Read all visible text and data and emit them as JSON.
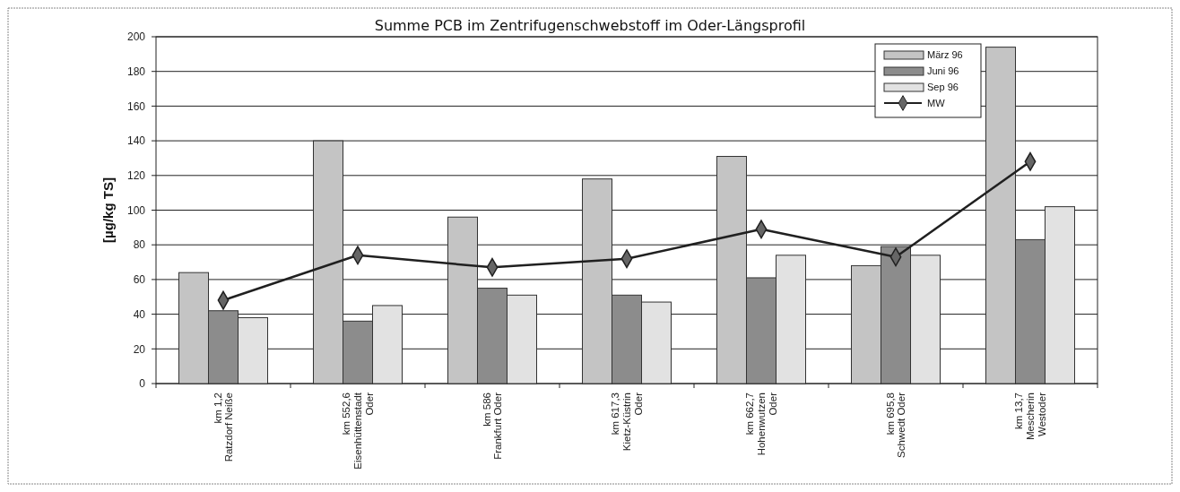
{
  "chart_data": {
    "type": "bar",
    "title": "Summe PCB im Zentrifugenschwebstoff im Oder-Längsprofil",
    "ylabel": "[µg/kg TS]",
    "categories": [
      "km 1,2\nRatzdorf Neiße",
      "km 552,6\nEisenhüttenstadt\nOder",
      "km 586\nFrankfurt Oder",
      "km 617,3\nKietz-Küstrin\nOder",
      "km 662,7\nHohenwutzen\nOder",
      "km 695,8\nSchwedt Oder",
      "km 13,7\nMescherin\nWestoder"
    ],
    "series": [
      {
        "name": "März 96",
        "color": "#c4c4c4",
        "values": [
          64,
          140,
          96,
          118,
          131,
          68,
          194
        ]
      },
      {
        "name": "Juni 96",
        "color": "#8c8c8c",
        "values": [
          42,
          36,
          55,
          51,
          61,
          79,
          83
        ]
      },
      {
        "name": "Sep 96",
        "color": "#e2e2e2",
        "values": [
          38,
          45,
          51,
          47,
          74,
          74,
          102
        ]
      },
      {
        "name": "MW",
        "type": "line",
        "color": "#202020",
        "marker": "diamond",
        "values": [
          48,
          74,
          67,
          72,
          89,
          73,
          128
        ]
      }
    ],
    "ylim": [
      0,
      200
    ],
    "yticks": [
      0,
      20,
      40,
      60,
      80,
      100,
      120,
      140,
      160,
      180,
      200
    ],
    "grid": "y",
    "legend": "top right"
  }
}
